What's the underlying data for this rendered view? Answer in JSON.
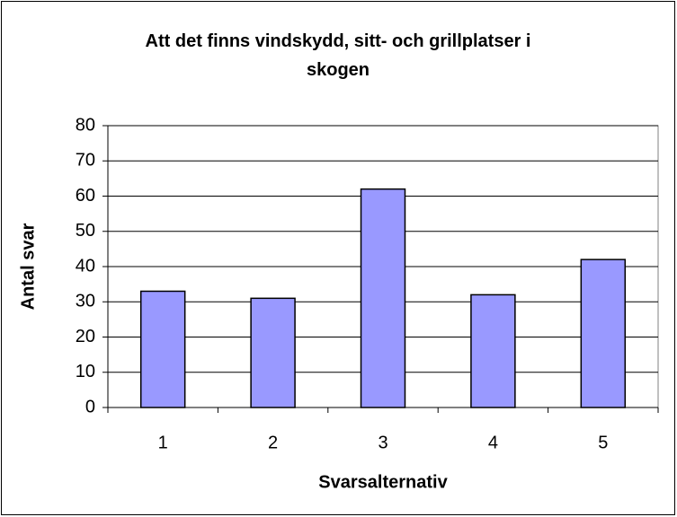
{
  "chart_data": {
    "type": "bar",
    "title": "Att det finns vindskydd, sitt- och grillplatser i skogen",
    "x_label": "Svarsalternativ",
    "y_label": "Antal svar",
    "categories": [
      "1",
      "2",
      "3",
      "4",
      "5"
    ],
    "values": [
      33,
      31,
      62,
      32,
      42
    ],
    "color": "#9999ff",
    "ylim": [
      0,
      80
    ],
    "yticks": [
      0,
      10,
      20,
      30,
      40,
      50,
      60,
      70,
      80
    ],
    "grid": true
  }
}
